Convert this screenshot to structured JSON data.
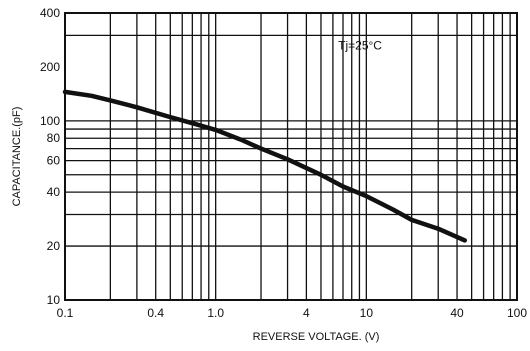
{
  "chart_data": {
    "type": "line",
    "xlabel": "REVERSE VOLTAGE. (V)",
    "ylabel": "CAPACITANCE.(pF)",
    "xscale": "log",
    "yscale": "log",
    "xlim": [
      0.1,
      100
    ],
    "ylim": [
      10,
      400
    ],
    "x_ticks": [
      0.1,
      0.4,
      1.0,
      4,
      10,
      40,
      100
    ],
    "x_tick_labels": [
      "0.1",
      "0.4",
      "1.0",
      "4",
      "10",
      "40",
      "100"
    ],
    "y_ticks": [
      10,
      20,
      40,
      60,
      80,
      100,
      200,
      400
    ],
    "y_tick_labels": [
      "10",
      "20",
      "40",
      "60",
      "80",
      "100",
      "200",
      "400"
    ],
    "x_grid": [
      0.2,
      0.3,
      0.4,
      0.5,
      0.6,
      0.7,
      0.8,
      0.9,
      1,
      2,
      3,
      4,
      5,
      6,
      7,
      8,
      9,
      10,
      20,
      30,
      40,
      50,
      60,
      70,
      80,
      90
    ],
    "y_grid": [
      20,
      30,
      40,
      50,
      60,
      70,
      80,
      90,
      100,
      300
    ],
    "grid": true,
    "annotation": {
      "text": "Tj=25°C",
      "x": 6.5,
      "y": 250
    },
    "series": [
      {
        "x": [
          0.1,
          0.15,
          0.2,
          0.3,
          0.5,
          0.7,
          1.0,
          1.5,
          2,
          3,
          5,
          7,
          10,
          15,
          20,
          30,
          45
        ],
        "values": [
          145,
          138,
          130,
          119,
          105,
          97,
          89,
          78,
          70,
          61,
          50,
          43,
          38,
          32,
          28,
          25,
          21.5
        ],
        "color": "#111111"
      }
    ]
  }
}
